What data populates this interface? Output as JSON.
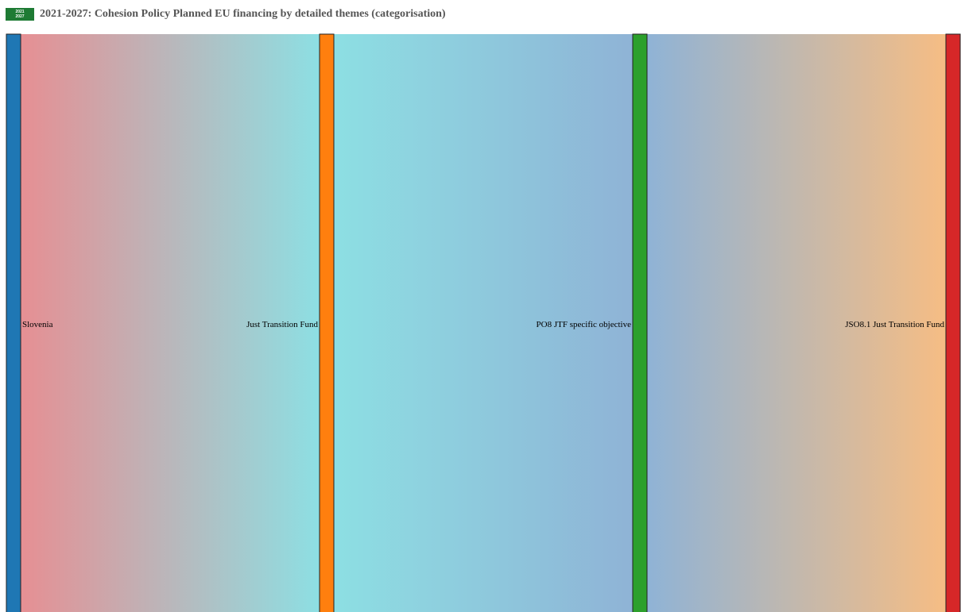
{
  "header": {
    "badge_line1": "2021",
    "badge_line2": "2027",
    "title": "2021-2027: Cohesion Policy Planned EU financing by detailed themes (categorisation)"
  },
  "chart_data": {
    "type": "sankey",
    "title": "2021-2027: Cohesion Policy Planned EU financing by detailed themes (categorisation)",
    "nodes": [
      {
        "name": "Slovenia",
        "color": "#1f77b4",
        "label_side": "right"
      },
      {
        "name": "Just Transition Fund",
        "color": "#ff7f0e",
        "label_side": "left"
      },
      {
        "name": "PO8 JTF specific objective",
        "color": "#2ca02c",
        "label_side": "left"
      },
      {
        "name": "JSO8.1 Just Transition Fund",
        "color": "#d62728",
        "label_side": "left"
      }
    ],
    "links": [
      {
        "source": "Slovenia",
        "target": "Just Transition Fund",
        "color_from": "#e68f93",
        "color_to": "#8ddfe3"
      },
      {
        "source": "Just Transition Fund",
        "target": "PO8 JTF specific objective",
        "color_from": "#8ddfe3",
        "color_to": "#8fb3d6"
      },
      {
        "source": "PO8 JTF specific objective",
        "target": "JSO8.1 Just Transition Fund",
        "color_from": "#8fb3d6",
        "color_to": "#f6bd84"
      }
    ]
  }
}
